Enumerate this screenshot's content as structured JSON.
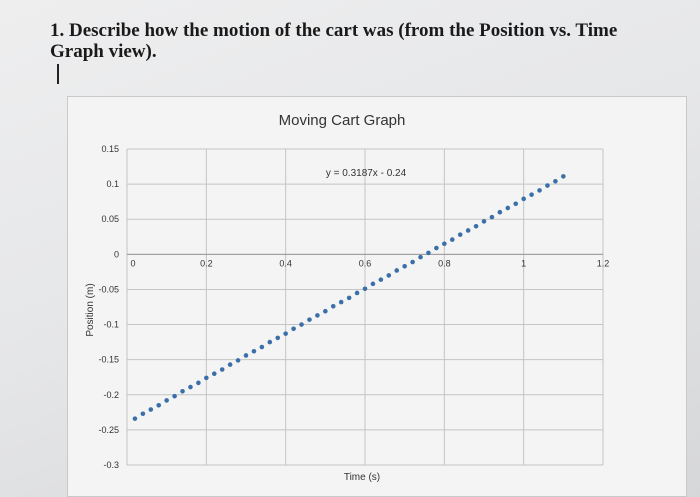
{
  "question": {
    "text": "1. Describe how the motion of the cart was (from the Position vs. Time Graph view)."
  },
  "colors": {
    "marker": "#3a6fa8",
    "grid": "#c4c4c4",
    "text": "#333333"
  },
  "chart_data": {
    "type": "scatter",
    "title": "Moving Cart Graph",
    "xlabel": "Time (s)",
    "ylabel": "Position (m)",
    "xlim": [
      0,
      1.2
    ],
    "ylim": [
      -0.3,
      0.15
    ],
    "grid": true,
    "x_ticks": [
      0,
      0.2,
      0.4,
      0.6,
      0.8,
      1,
      1.2
    ],
    "x_tick_labels": [
      "0",
      "0.2",
      "0.4",
      "0.6",
      "0.8",
      "1",
      "1.2"
    ],
    "y_ticks": [
      0.15,
      0.1,
      0.05,
      0,
      -0.05,
      -0.1,
      -0.15,
      -0.2,
      -0.25,
      -0.3
    ],
    "y_tick_labels": [
      "0.15",
      "0.1",
      "0.05",
      "0",
      "-0.05",
      "-0.1",
      "-0.15",
      "-0.2",
      "-0.25",
      "-0.3"
    ],
    "trendline_label": "y = 0.3187x - 0.24",
    "series": [
      {
        "x": [
          0.02,
          0.04,
          0.06,
          0.08,
          0.1,
          0.12,
          0.14,
          0.16,
          0.18,
          0.2,
          0.22,
          0.24,
          0.26,
          0.28,
          0.3,
          0.32,
          0.34,
          0.36,
          0.38,
          0.4,
          0.42,
          0.44,
          0.46,
          0.48,
          0.5,
          0.52,
          0.54,
          0.56,
          0.58,
          0.6,
          0.62,
          0.64,
          0.66,
          0.68,
          0.7,
          0.72,
          0.74,
          0.76,
          0.78,
          0.8,
          0.82,
          0.84,
          0.86,
          0.88,
          0.9,
          0.92,
          0.94,
          0.96,
          0.98,
          1.0,
          1.02,
          1.04,
          1.06,
          1.08,
          1.1
        ],
        "y": [
          -0.234,
          -0.227,
          -0.221,
          -0.215,
          -0.208,
          -0.202,
          -0.195,
          -0.189,
          -0.183,
          -0.176,
          -0.17,
          -0.164,
          -0.157,
          -0.151,
          -0.144,
          -0.138,
          -0.132,
          -0.125,
          -0.119,
          -0.113,
          -0.106,
          -0.1,
          -0.093,
          -0.087,
          -0.081,
          -0.074,
          -0.068,
          -0.062,
          -0.055,
          -0.049,
          -0.042,
          -0.036,
          -0.03,
          -0.023,
          -0.017,
          -0.011,
          -0.004,
          0.002,
          0.009,
          0.015,
          0.021,
          0.028,
          0.034,
          0.04,
          0.047,
          0.053,
          0.06,
          0.066,
          0.072,
          0.079,
          0.085,
          0.091,
          0.098,
          0.104,
          0.111
        ]
      }
    ]
  }
}
